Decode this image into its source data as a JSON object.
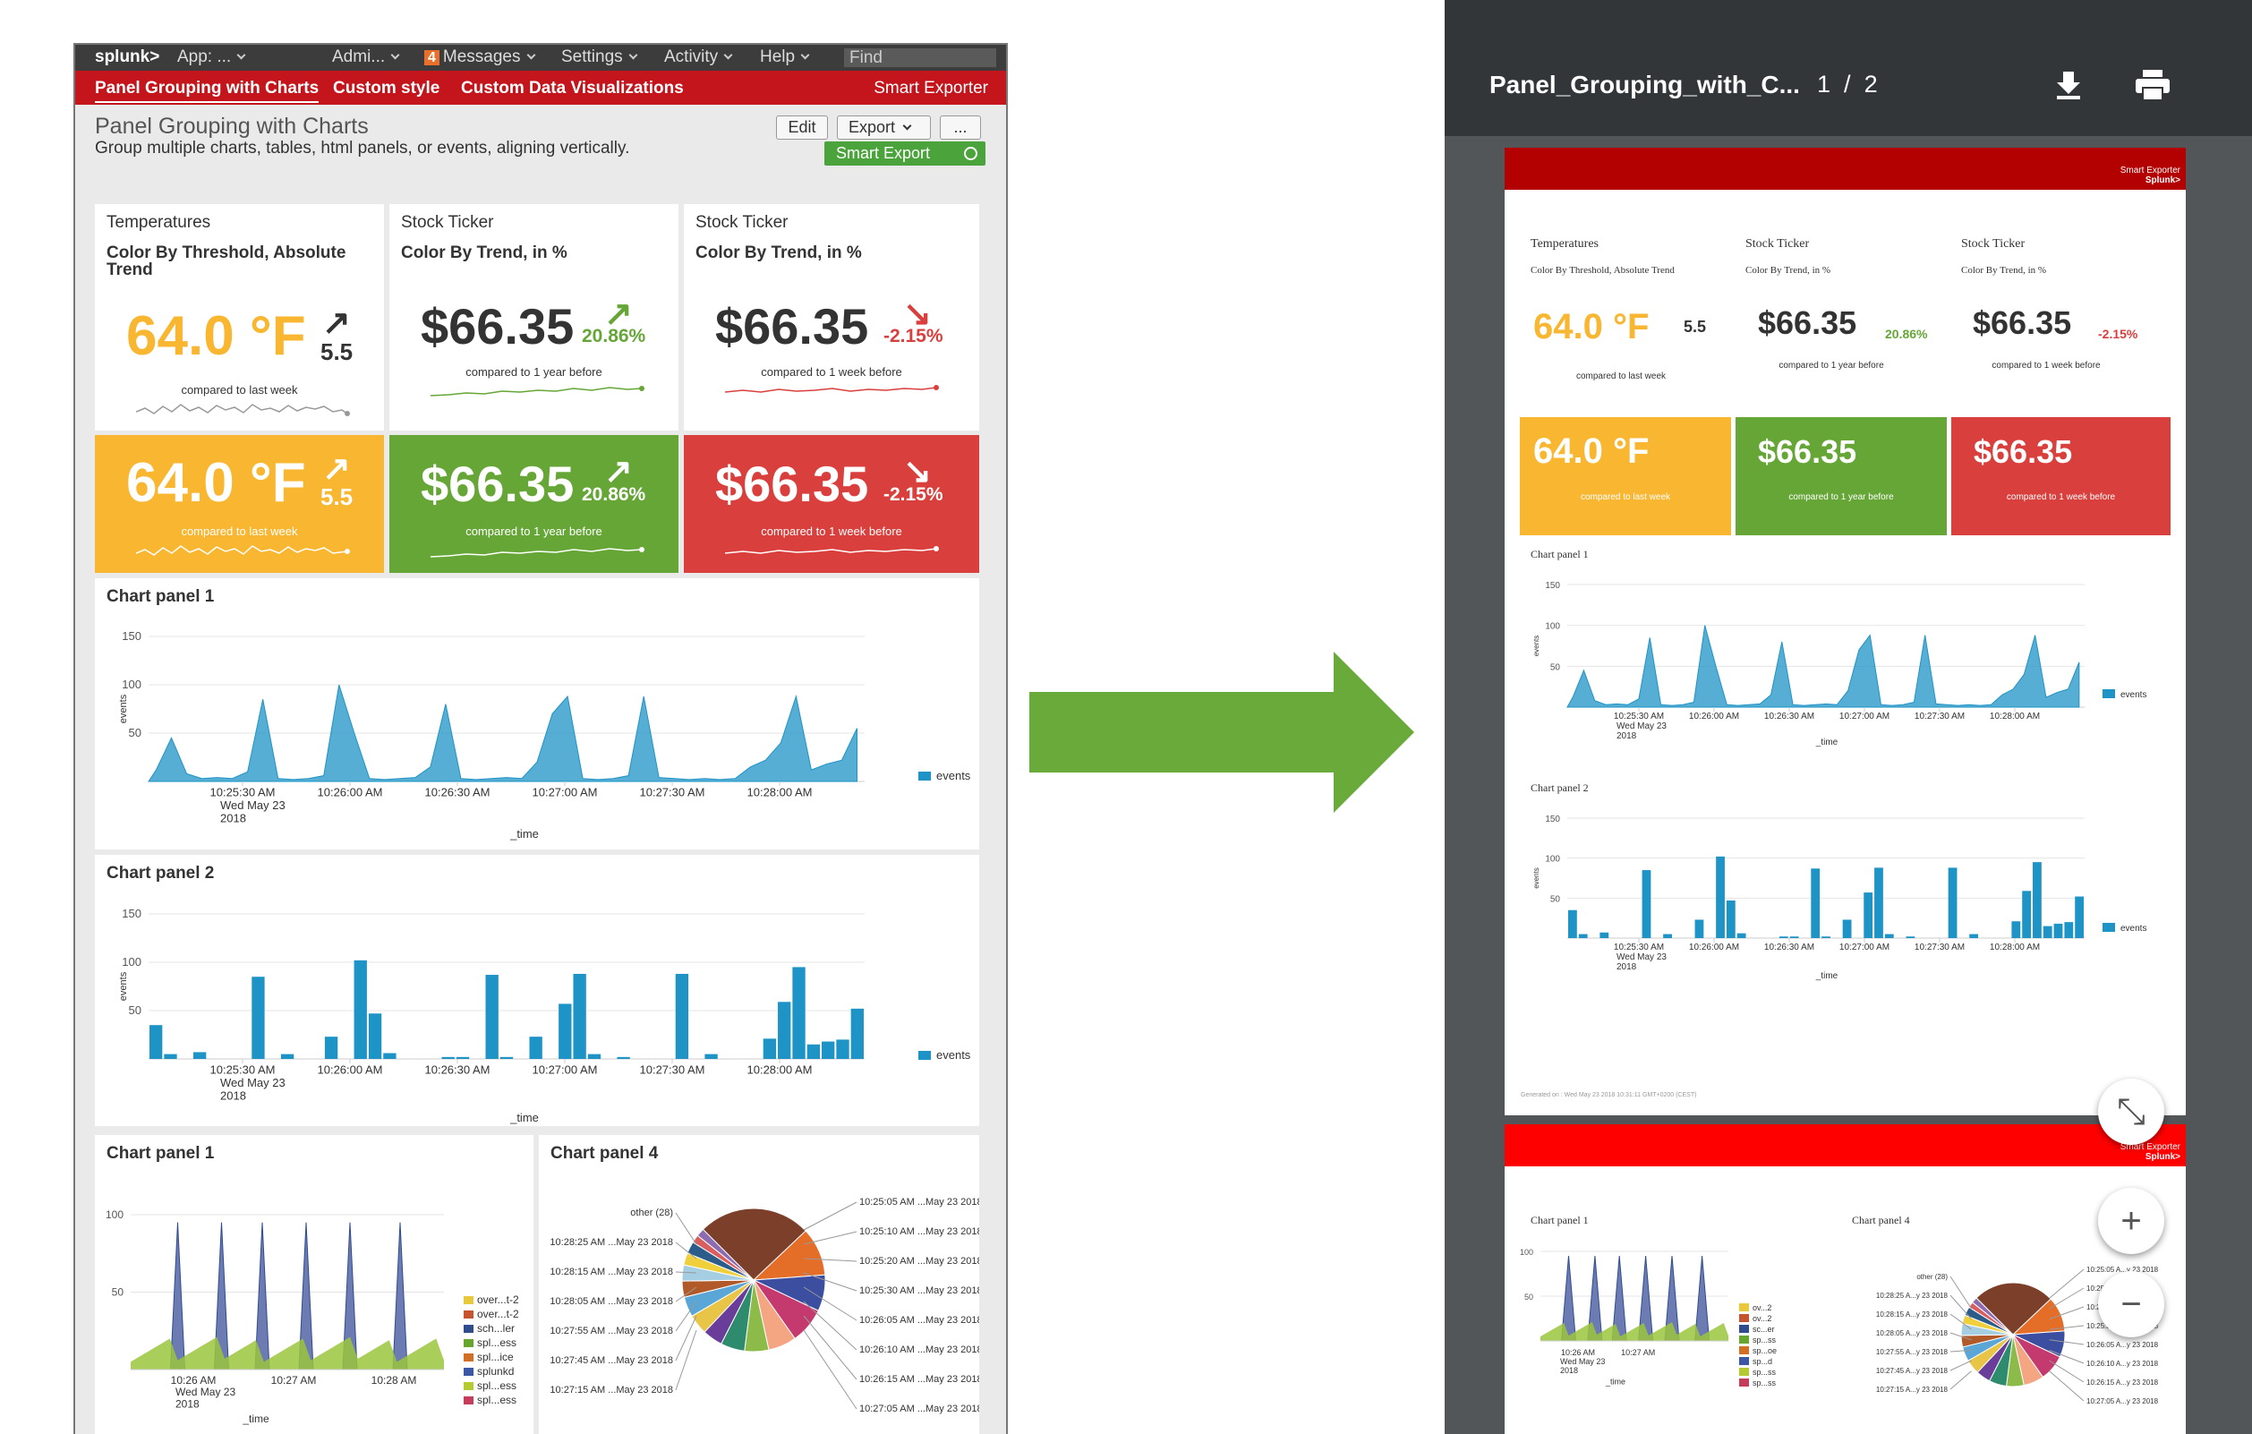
{
  "splunk": {
    "logo": "splunk>",
    "nav": [
      "App: ...",
      "Admi...",
      "Messages",
      "Settings",
      "Activity",
      "Help"
    ],
    "messages_count": "4",
    "find": "Find",
    "tabs": [
      "Panel Grouping with Charts",
      "Custom style",
      "Custom Data Visualizations"
    ],
    "smart_exporter": "Smart Exporter",
    "title": "Panel Grouping with Charts",
    "description": "Group multiple charts, tables, html panels, or events, aligning vertically.",
    "edit": "Edit",
    "export": "Export",
    "more": "...",
    "smart_export": "Smart Export",
    "sv": [
      {
        "title": "Temperatures",
        "subtitle": "Color By Threshold, Absolute Trend",
        "value": "64.0 °F",
        "delta": "5.5",
        "arrow": "↗",
        "compare": "compared to last week"
      },
      {
        "title": "Stock Ticker",
        "subtitle": "Color By Trend, in %",
        "value": "$66.35",
        "delta": "20.86%",
        "arrow": "↗",
        "compare": "compared to 1 year before"
      },
      {
        "title": "Stock Ticker",
        "subtitle": "Color By Trend, in %",
        "value": "$66.35",
        "delta": "-2.15%",
        "arrow": "↘",
        "compare": "compared to 1 week before"
      }
    ],
    "colors": {
      "yellow": "#f8b631",
      "green": "#65a637",
      "red": "#d93f3c",
      "blue": "#1e93c6",
      "dark_red": "#c3151b"
    },
    "chart1_title": "Chart panel 1",
    "chart2_title": "Chart panel 2",
    "chart3_title": "Chart panel 1",
    "chart4_title": "Chart panel 4",
    "legend_events": "events",
    "xlabel": "_time",
    "ylabel": "events",
    "x_ticks": [
      "10:25:30 AM",
      "10:26:00 AM",
      "10:26:30 AM",
      "10:27:00 AM",
      "10:27:30 AM",
      "10:28:00 AM"
    ],
    "x_first_sub": [
      "Wed May 23",
      "2018"
    ],
    "y_ticks": [
      "150",
      "100",
      "50"
    ],
    "c3_y_ticks": [
      "100",
      "50"
    ],
    "c3_x_ticks": [
      "10:26 AM",
      "10:27 AM",
      "10:28 AM"
    ],
    "c3_legend": [
      "over...t-2",
      "over...t-2",
      "sch...ler",
      "spl...ess",
      "spl...ice",
      "splunkd",
      "spl...ess",
      "spl...ess"
    ],
    "pie_labels_left": [
      "other (28)",
      "10:28:25 AM ...May 23 2018",
      "10:28:15 AM ...May 23 2018",
      "10:28:05 AM ...May 23 2018",
      "10:27:55 AM ...May 23 2018",
      "10:27:45 AM ...May 23 2018",
      "10:27:15 AM ...May 23 2018"
    ],
    "pie_labels_right": [
      "10:25:05 AM ...May 23 2018",
      "10:25:10 AM ...May 23 2018",
      "10:25:20 AM ...May 23 2018",
      "10:25:30 AM ...May 23 2018",
      "10:26:05 AM ...May 23 2018",
      "10:26:10 AM ...May 23 2018",
      "10:26:15 AM ...May 23 2018",
      "10:27:05 AM ...May 23 2018"
    ]
  },
  "viewer": {
    "filename": "Panel_Grouping_with_C...",
    "page": "1",
    "sep": "/",
    "total": "2",
    "smart_exporter": "Smart Exporter",
    "splunk": "Splunk>",
    "footer": "Generated on : Wed May 23 2018 10:31:11 GMT+0200 (CEST)",
    "c3_legend": [
      "ov...2",
      "ov...2",
      "sc...er",
      "sp...ss",
      "sp...oe",
      "sp...d",
      "sp...ss",
      "sp...ss"
    ],
    "c3_x_ticks": [
      "10:26 AM",
      "10:27 AM"
    ],
    "pie_labels_left": [
      "other (28)",
      "10:28:25 A...y 23 2018",
      "10:28:15 A...y 23 2018",
      "10:28:05 A...y 23 2018",
      "10:27:55 A...y 23 2018",
      "10:27:45 A...y 23 2018",
      "10:27:15 A...y 23 2018"
    ],
    "pie_labels_right": [
      "10:25:05 A...y 23 2018",
      "10:25:10 A...y 23 2018",
      "10:25:20 A...y 23 2018",
      "10:25:30 A...y 23 2018",
      "10:26:05 A...y 23 2018",
      "10:26:10 A...y 23 2018",
      "10:26:15 A...y 23 2018",
      "10:27:05 A...y 23 2018"
    ],
    "zoom_fit": "⤡",
    "zoom_in": "+",
    "zoom_out": "−"
  },
  "chart_data": [
    {
      "type": "area",
      "title": "Chart panel 1",
      "xlabel": "_time",
      "ylabel": "events",
      "ylim": [
        0,
        150
      ],
      "series": [
        {
          "name": "events",
          "values": [
            12,
            45,
            8,
            3,
            4,
            3,
            10,
            85,
            3,
            2,
            3,
            6,
            100,
            50,
            3,
            2,
            3,
            4,
            15,
            80,
            3,
            2,
            3,
            4,
            3,
            20,
            70,
            88,
            3,
            2,
            3,
            6,
            88,
            4,
            3,
            2,
            3,
            2,
            3,
            15,
            22,
            40,
            88,
            12,
            18,
            22,
            55
          ]
        }
      ]
    },
    {
      "type": "bar",
      "title": "Chart panel 2",
      "xlabel": "_time",
      "ylabel": "events",
      "ylim": [
        0,
        150
      ],
      "series": [
        {
          "name": "events",
          "values": [
            35,
            5,
            0,
            7,
            0,
            0,
            0,
            85,
            0,
            5,
            0,
            0,
            23,
            0,
            102,
            47,
            6,
            0,
            0,
            0,
            2,
            2,
            0,
            87,
            2,
            0,
            23,
            0,
            57,
            88,
            5,
            0,
            2,
            0,
            0,
            0,
            88,
            0,
            5,
            0,
            0,
            0,
            21,
            59,
            95,
            15,
            18,
            20,
            52
          ]
        }
      ]
    },
    {
      "type": "pie",
      "title": "Chart panel 4",
      "values": [
        28,
        12,
        9,
        9,
        7,
        6,
        6,
        5,
        5,
        5,
        4,
        4,
        3,
        3,
        2,
        2
      ]
    }
  ]
}
